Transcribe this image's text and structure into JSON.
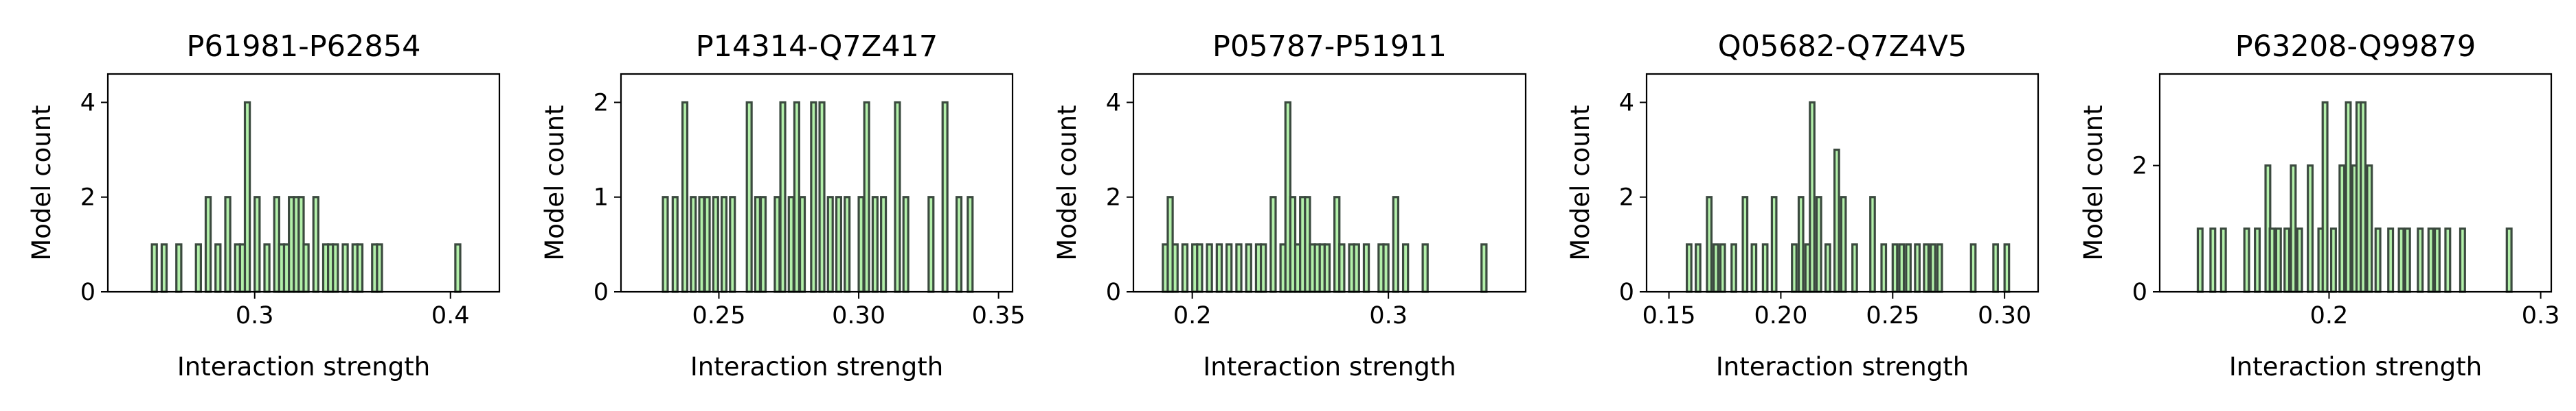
{
  "chart_data": [
    {
      "type": "bar",
      "title": "P61981-P62854",
      "xlabel": "Interaction strength",
      "ylabel": "Model count",
      "xlim": [
        0.225,
        0.425
      ],
      "ylim": [
        0,
        4.6
      ],
      "xticks": [
        0.3,
        0.4
      ],
      "xtick_labels": [
        "0.3",
        "0.4"
      ],
      "yticks": [
        0,
        2,
        4
      ],
      "ytick_labels": [
        "0",
        "2",
        "4"
      ],
      "bin_width": 0.0025,
      "bins": [
        [
          0.2475,
          1
        ],
        [
          0.2525,
          1
        ],
        [
          0.26,
          1
        ],
        [
          0.27,
          1
        ],
        [
          0.275,
          2
        ],
        [
          0.28,
          1
        ],
        [
          0.285,
          2
        ],
        [
          0.29,
          1
        ],
        [
          0.2925,
          1
        ],
        [
          0.295,
          4
        ],
        [
          0.3,
          2
        ],
        [
          0.305,
          1
        ],
        [
          0.31,
          2
        ],
        [
          0.3125,
          1
        ],
        [
          0.315,
          1
        ],
        [
          0.3175,
          2
        ],
        [
          0.32,
          2
        ],
        [
          0.3225,
          2
        ],
        [
          0.325,
          1
        ],
        [
          0.33,
          2
        ],
        [
          0.335,
          1
        ],
        [
          0.3375,
          1
        ],
        [
          0.34,
          1
        ],
        [
          0.345,
          1
        ],
        [
          0.35,
          1
        ],
        [
          0.3525,
          1
        ],
        [
          0.36,
          1
        ],
        [
          0.3625,
          1
        ],
        [
          0.4025,
          1
        ]
      ]
    },
    {
      "type": "bar",
      "title": "P14314-Q7Z417",
      "xlabel": "Interaction strength",
      "ylabel": "Model count",
      "xlim": [
        0.215,
        0.355
      ],
      "ylim": [
        0,
        2.3
      ],
      "xticks": [
        0.25,
        0.3,
        0.35
      ],
      "xtick_labels": [
        "0.25",
        "0.30",
        "0.35"
      ],
      "yticks": [
        0,
        1,
        2
      ],
      "ytick_labels": [
        "0",
        "1",
        "2"
      ],
      "bin_width": 0.0017,
      "bins": [
        [
          0.23,
          1
        ],
        [
          0.2335,
          1
        ],
        [
          0.237,
          2
        ],
        [
          0.24,
          1
        ],
        [
          0.243,
          1
        ],
        [
          0.245,
          1
        ],
        [
          0.248,
          1
        ],
        [
          0.251,
          1
        ],
        [
          0.254,
          1
        ],
        [
          0.26,
          2
        ],
        [
          0.263,
          1
        ],
        [
          0.265,
          1
        ],
        [
          0.27,
          1
        ],
        [
          0.272,
          2
        ],
        [
          0.275,
          1
        ],
        [
          0.277,
          2
        ],
        [
          0.279,
          1
        ],
        [
          0.283,
          2
        ],
        [
          0.286,
          2
        ],
        [
          0.289,
          1
        ],
        [
          0.292,
          1
        ],
        [
          0.295,
          1
        ],
        [
          0.3,
          1
        ],
        [
          0.302,
          2
        ],
        [
          0.305,
          1
        ],
        [
          0.308,
          1
        ],
        [
          0.313,
          2
        ],
        [
          0.316,
          1
        ],
        [
          0.325,
          1
        ],
        [
          0.33,
          2
        ],
        [
          0.335,
          1
        ],
        [
          0.339,
          1
        ]
      ]
    },
    {
      "type": "bar",
      "title": "P05787-P51911",
      "xlabel": "Interaction strength",
      "ylabel": "Model count",
      "xlim": [
        0.17,
        0.37
      ],
      "ylim": [
        0,
        4.6
      ],
      "xticks": [
        0.2,
        0.3
      ],
      "xtick_labels": [
        "0.2",
        "0.3"
      ],
      "yticks": [
        0,
        2,
        4
      ],
      "ytick_labels": [
        "0",
        "2",
        "4"
      ],
      "bin_width": 0.0025,
      "bins": [
        [
          0.185,
          1
        ],
        [
          0.1875,
          2
        ],
        [
          0.19,
          1
        ],
        [
          0.195,
          1
        ],
        [
          0.2,
          1
        ],
        [
          0.2025,
          1
        ],
        [
          0.2075,
          1
        ],
        [
          0.2125,
          1
        ],
        [
          0.2175,
          1
        ],
        [
          0.2225,
          1
        ],
        [
          0.2275,
          1
        ],
        [
          0.2325,
          1
        ],
        [
          0.235,
          1
        ],
        [
          0.24,
          2
        ],
        [
          0.245,
          1
        ],
        [
          0.2475,
          4
        ],
        [
          0.25,
          2
        ],
        [
          0.2525,
          1
        ],
        [
          0.255,
          2
        ],
        [
          0.2575,
          2
        ],
        [
          0.26,
          1
        ],
        [
          0.2625,
          1
        ],
        [
          0.265,
          1
        ],
        [
          0.2675,
          1
        ],
        [
          0.2725,
          2
        ],
        [
          0.275,
          1
        ],
        [
          0.28,
          1
        ],
        [
          0.2825,
          1
        ],
        [
          0.2875,
          1
        ],
        [
          0.295,
          1
        ],
        [
          0.2975,
          1
        ],
        [
          0.3025,
          2
        ],
        [
          0.3075,
          1
        ],
        [
          0.3175,
          1
        ],
        [
          0.3475,
          1
        ]
      ]
    },
    {
      "type": "bar",
      "title": "Q05682-Q7Z4V5",
      "xlabel": "Interaction strength",
      "ylabel": "Model count",
      "xlim": [
        0.14,
        0.315
      ],
      "ylim": [
        0,
        4.6
      ],
      "xticks": [
        0.15,
        0.2,
        0.25,
        0.3
      ],
      "xtick_labels": [
        "0.15",
        "0.20",
        "0.25",
        "0.30"
      ],
      "yticks": [
        0,
        2,
        4
      ],
      "ytick_labels": [
        "0",
        "2",
        "4"
      ],
      "bin_width": 0.002,
      "bins": [
        [
          0.158,
          1
        ],
        [
          0.162,
          1
        ],
        [
          0.167,
          2
        ],
        [
          0.17,
          1
        ],
        [
          0.173,
          1
        ],
        [
          0.178,
          1
        ],
        [
          0.183,
          2
        ],
        [
          0.187,
          1
        ],
        [
          0.192,
          1
        ],
        [
          0.196,
          2
        ],
        [
          0.205,
          1
        ],
        [
          0.208,
          2
        ],
        [
          0.211,
          1
        ],
        [
          0.213,
          4
        ],
        [
          0.216,
          2
        ],
        [
          0.22,
          1
        ],
        [
          0.224,
          3
        ],
        [
          0.227,
          2
        ],
        [
          0.232,
          1
        ],
        [
          0.24,
          2
        ],
        [
          0.245,
          1
        ],
        [
          0.25,
          1
        ],
        [
          0.253,
          1
        ],
        [
          0.256,
          1
        ],
        [
          0.26,
          1
        ],
        [
          0.264,
          1
        ],
        [
          0.267,
          1
        ],
        [
          0.27,
          1
        ],
        [
          0.285,
          1
        ],
        [
          0.295,
          1
        ],
        [
          0.3,
          1
        ]
      ]
    },
    {
      "type": "bar",
      "title": "P63208-Q99879",
      "xlabel": "Interaction strength",
      "ylabel": "Model count",
      "xlim": [
        0.12,
        0.305
      ],
      "ylim": [
        0,
        3.45
      ],
      "xticks": [
        0.2,
        0.3
      ],
      "xtick_labels": [
        "0.2",
        "0.3"
      ],
      "yticks": [
        0,
        2
      ],
      "ytick_labels": [
        "0",
        "2"
      ],
      "bin_width": 0.0022,
      "bins": [
        [
          0.138,
          1
        ],
        [
          0.144,
          1
        ],
        [
          0.149,
          1
        ],
        [
          0.16,
          1
        ],
        [
          0.165,
          1
        ],
        [
          0.17,
          2
        ],
        [
          0.172,
          1
        ],
        [
          0.175,
          1
        ],
        [
          0.179,
          1
        ],
        [
          0.182,
          2
        ],
        [
          0.185,
          1
        ],
        [
          0.19,
          2
        ],
        [
          0.195,
          1
        ],
        [
          0.197,
          3
        ],
        [
          0.201,
          1
        ],
        [
          0.205,
          2
        ],
        [
          0.208,
          3
        ],
        [
          0.211,
          2
        ],
        [
          0.213,
          3
        ],
        [
          0.215,
          3
        ],
        [
          0.218,
          2
        ],
        [
          0.222,
          1
        ],
        [
          0.228,
          1
        ],
        [
          0.233,
          1
        ],
        [
          0.236,
          1
        ],
        [
          0.242,
          1
        ],
        [
          0.247,
          1
        ],
        [
          0.25,
          1
        ],
        [
          0.255,
          1
        ],
        [
          0.262,
          1
        ],
        [
          0.284,
          1
        ]
      ]
    }
  ]
}
